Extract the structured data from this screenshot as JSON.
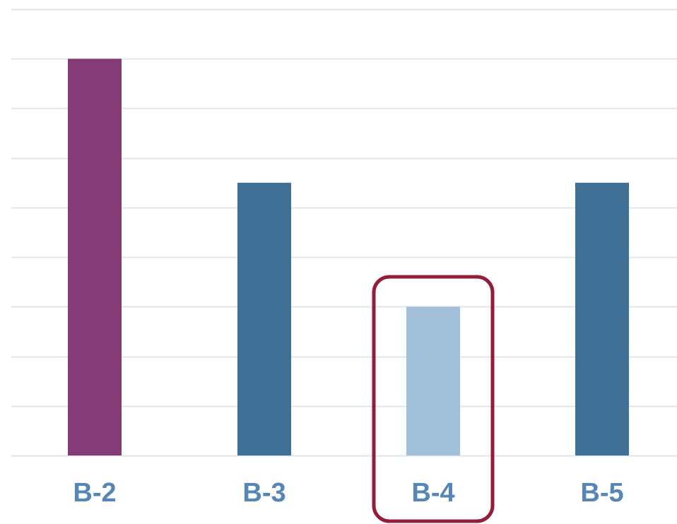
{
  "colors": {
    "grid": "#dde7ef",
    "bar_default": "#417096",
    "bar_first": "#853c76",
    "bar_highlight": "#a3c0da",
    "label": "#5686b7",
    "highlight_box": "#941e3a"
  },
  "chart_data": {
    "type": "bar",
    "categories": [
      "B-2",
      "B-3",
      "B-4",
      "B-5"
    ],
    "values": [
      8,
      5.5,
      3,
      5.5
    ],
    "ylim": [
      0,
      9
    ],
    "grid": true,
    "highlighted_category": "B-4"
  }
}
